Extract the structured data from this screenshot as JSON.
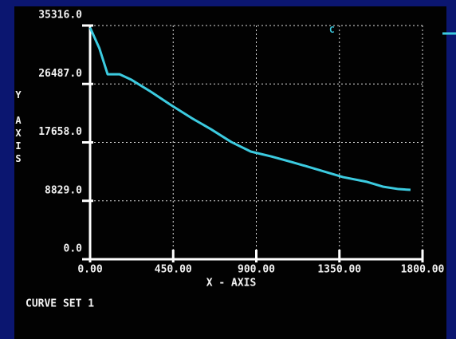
{
  "chart_data": {
    "type": "line",
    "xlabel": "X - AXIS",
    "ylabel": "Y AXIS",
    "caption": "CURVE SET 1",
    "x": [
      0,
      50,
      95,
      160,
      225,
      330,
      440,
      550,
      655,
      765,
      870,
      980,
      1090,
      1195,
      1370,
      1500,
      1585,
      1670,
      1735
    ],
    "series": [
      {
        "name": "C",
        "color": "#3ccbe0",
        "values": [
          35000,
          31900,
          27950,
          27950,
          27100,
          25300,
          23260,
          21330,
          19640,
          17710,
          16270,
          15540,
          14700,
          13860,
          12410,
          11690,
          10970,
          10600,
          10480
        ]
      }
    ],
    "xlim": [
      0,
      1800
    ],
    "xticks": [
      {
        "value": 0,
        "label": "0.00"
      },
      {
        "value": 450,
        "label": "450.00"
      },
      {
        "value": 900,
        "label": "900.00"
      },
      {
        "value": 1350,
        "label": "1350.00"
      },
      {
        "value": 1800,
        "label": "1800.00"
      }
    ],
    "ylim": [
      0,
      35316
    ],
    "yticks": [
      {
        "value": 0,
        "label": "0.0"
      },
      {
        "value": 8829,
        "label": "8829.0"
      },
      {
        "value": 17658,
        "label": "17658.0"
      },
      {
        "value": 26487,
        "label": "26487.0"
      },
      {
        "value": 35316,
        "label": "35316.0"
      }
    ],
    "grid": true,
    "legend": "top-right"
  }
}
